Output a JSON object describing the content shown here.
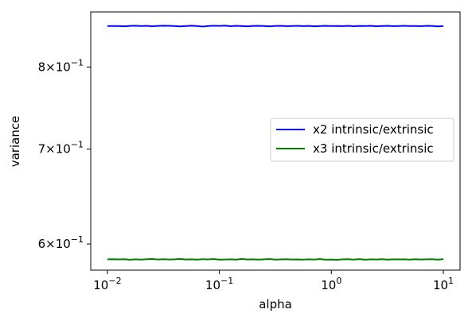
{
  "chart_data": {
    "type": "line",
    "xlabel": "alpha",
    "ylabel": "variance",
    "xscale": "log",
    "yscale": "log",
    "xlim": [
      0.0071,
      14.1
    ],
    "ylim": [
      0.575,
      0.875
    ],
    "x_ticks": [
      {
        "value": 0.01,
        "base": "10",
        "exp": "−2"
      },
      {
        "value": 0.1,
        "base": "10",
        "exp": "−1"
      },
      {
        "value": 1,
        "base": "10",
        "exp": "0"
      },
      {
        "value": 10,
        "base": "10",
        "exp": "1"
      }
    ],
    "y_ticks": [
      {
        "value": 0.6,
        "mant": "6",
        "times": "×",
        "base": "10",
        "exp": "−1"
      },
      {
        "value": 0.7,
        "mant": "7",
        "times": "×",
        "base": "10",
        "exp": "−1"
      },
      {
        "value": 0.8,
        "mant": "8",
        "times": "×",
        "base": "10",
        "exp": "−1"
      }
    ],
    "x": [
      0.01,
      0.0112,
      0.0126,
      0.0141,
      0.0158,
      0.0178,
      0.02,
      0.0224,
      0.0251,
      0.0282,
      0.0316,
      0.0355,
      0.0398,
      0.0447,
      0.0501,
      0.0562,
      0.0631,
      0.0708,
      0.0794,
      0.0891,
      0.1,
      0.112,
      0.126,
      0.141,
      0.158,
      0.178,
      0.2,
      0.224,
      0.251,
      0.282,
      0.316,
      0.355,
      0.398,
      0.447,
      0.501,
      0.562,
      0.631,
      0.708,
      0.794,
      0.891,
      1.0,
      1.12,
      1.26,
      1.41,
      1.58,
      1.78,
      2.0,
      2.24,
      2.51,
      2.82,
      3.16,
      3.55,
      3.98,
      4.47,
      5.01,
      5.62,
      6.31,
      7.08,
      7.94,
      8.91,
      10.0
    ],
    "series": [
      {
        "name": "x2 intrinsic/extrinsic",
        "color": "#0000ff",
        "values": [
          0.8552,
          0.8552,
          0.8551,
          0.8548,
          0.8553,
          0.8556,
          0.8551,
          0.8554,
          0.8549,
          0.8553,
          0.8556,
          0.8554,
          0.8551,
          0.8546,
          0.8551,
          0.8556,
          0.8552,
          0.8544,
          0.8552,
          0.8556,
          0.8553,
          0.8557,
          0.8549,
          0.8555,
          0.8551,
          0.8548,
          0.8553,
          0.8555,
          0.8552,
          0.8548,
          0.8553,
          0.8554,
          0.855,
          0.8552,
          0.8554,
          0.855,
          0.8553,
          0.8548,
          0.8552,
          0.8555,
          0.8551,
          0.8553,
          0.855,
          0.8555,
          0.8549,
          0.8553,
          0.8551,
          0.8554,
          0.8549,
          0.8552,
          0.8555,
          0.855,
          0.8552,
          0.8554,
          0.8551,
          0.8552,
          0.855,
          0.8555,
          0.8553,
          0.8546,
          0.8552
        ]
      },
      {
        "name": "x3 intrinsic/extrinsic",
        "color": "#008000",
        "values": [
          0.5852,
          0.5853,
          0.5851,
          0.5853,
          0.5848,
          0.5852,
          0.5849,
          0.5853,
          0.5856,
          0.585,
          0.5853,
          0.585,
          0.5852,
          0.5856,
          0.585,
          0.5852,
          0.5849,
          0.5853,
          0.5851,
          0.5855,
          0.5849,
          0.585,
          0.5852,
          0.5849,
          0.5856,
          0.585,
          0.5852,
          0.5849,
          0.5852,
          0.5855,
          0.5849,
          0.5851,
          0.5853,
          0.585,
          0.5851,
          0.5849,
          0.5852,
          0.585,
          0.5855,
          0.5848,
          0.585,
          0.5847,
          0.5852,
          0.5853,
          0.5849,
          0.5854,
          0.5848,
          0.5852,
          0.585,
          0.5853,
          0.5849,
          0.5852,
          0.5851,
          0.5852,
          0.5849,
          0.5853,
          0.585,
          0.5852,
          0.5853,
          0.5849,
          0.5854
        ]
      }
    ],
    "legend": "center-right",
    "grid": false
  }
}
